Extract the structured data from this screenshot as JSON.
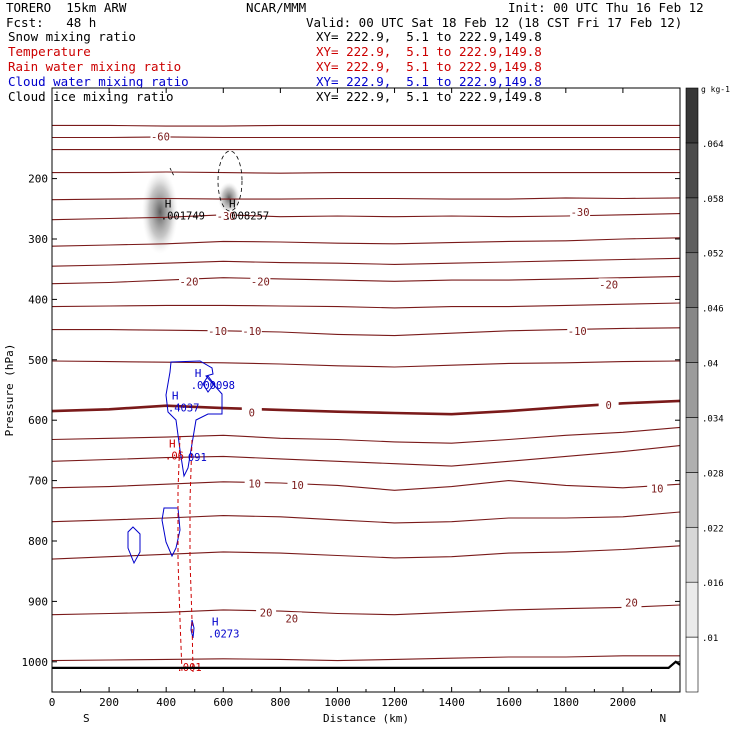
{
  "header": {
    "model": "TORERO  15km ARW",
    "center": "NCAR/MMM",
    "init": "Init: 00 UTC Thu 16 Feb 12",
    "fcst": "Fcst:   48 h",
    "valid": "Valid: 00 UTC Sat 18 Feb 12 (18 CST Fri 17 Feb 12)",
    "fields": [
      {
        "label": "Snow mixing ratio",
        "xy": "XY= 222.9,  5.1 to 222.9,149.8",
        "color": "#000000"
      },
      {
        "label": "Temperature",
        "xy": "XY= 222.9,  5.1 to 222.9,149.8",
        "color": "#cc0000"
      },
      {
        "label": "Rain water mixing ratio",
        "xy": "XY= 222.9,  5.1 to 222.9,149.8",
        "color": "#cc0000"
      },
      {
        "label": "Cloud water mixing ratio",
        "xy": "XY= 222.9,  5.1 to 222.9,149.8",
        "color": "#0000cc"
      },
      {
        "label": "Cloud ice mixing ratio",
        "xy": "XY= 222.9,  5.1 to 222.9,149.8",
        "color": "#000000"
      }
    ]
  },
  "chart_data": {
    "type": "cross-section contour",
    "xlabel": "Distance (km)",
    "ylabel": "Pressure (hPa)",
    "xlim": [
      0,
      2200
    ],
    "ylim": [
      1050,
      50
    ],
    "x_ticks": [
      0,
      200,
      400,
      600,
      800,
      1000,
      1200,
      1400,
      1600,
      1800,
      2000
    ],
    "y_ticks": [
      200,
      300,
      400,
      500,
      600,
      700,
      800,
      900,
      1000
    ],
    "endpoints": {
      "left": "S",
      "right": "N"
    },
    "colorbar": {
      "unit": "g kg-1",
      "ticks": [
        ".01",
        ".016",
        ".022",
        ".028",
        ".034",
        ".04",
        ".046",
        ".052",
        ".058",
        ".064"
      ]
    },
    "temperature_contours": [
      {
        "label": "-60",
        "p": [
          112,
          112,
          113,
          113,
          112,
          112,
          112,
          112,
          112,
          112,
          112,
          112
        ]
      },
      {
        "label": "-60",
        "p": [
          132,
          132,
          131,
          132,
          132,
          132,
          132,
          132,
          132,
          132,
          132,
          132
        ]
      },
      {
        "label": "-60",
        "p": [
          152,
          152,
          152,
          152,
          152,
          152,
          152,
          152,
          152,
          152,
          152,
          152
        ]
      },
      {
        "label": "",
        "p": [
          190,
          190,
          189,
          190,
          191,
          190,
          190,
          190,
          190,
          190,
          190,
          190
        ]
      },
      {
        "label": "",
        "p": [
          235,
          234,
          233,
          234,
          234,
          233,
          233,
          234,
          234,
          232,
          233,
          232
        ]
      },
      {
        "label": "-30",
        "p": [
          268,
          266,
          264,
          260,
          263,
          262,
          263,
          262,
          263,
          262,
          260,
          258
        ]
      },
      {
        "label": "-30",
        "p": [
          312,
          310,
          308,
          304,
          305,
          307,
          308,
          306,
          304,
          303,
          300,
          298
        ]
      },
      {
        "label": "",
        "p": [
          345,
          343,
          340,
          337,
          339,
          340,
          342,
          340,
          338,
          336,
          334,
          332
        ]
      },
      {
        "label": "-20",
        "p": [
          374,
          372,
          368,
          364,
          366,
          368,
          370,
          368,
          368,
          366,
          364,
          362
        ]
      },
      {
        "label": "",
        "p": [
          412,
          411,
          410,
          410,
          411,
          412,
          414,
          412,
          412,
          410,
          408,
          406
        ]
      },
      {
        "label": "-10",
        "p": [
          450,
          450,
          451,
          452,
          454,
          458,
          460,
          456,
          452,
          450,
          448,
          447
        ]
      },
      {
        "label": "",
        "p": [
          502,
          503,
          504,
          505,
          507,
          510,
          512,
          509,
          506,
          505,
          503,
          502
        ]
      },
      {
        "label": "0",
        "p": [
          585,
          582,
          576,
          580,
          583,
          586,
          588,
          590,
          585,
          578,
          572,
          568
        ]
      },
      {
        "label": "",
        "p": [
          632,
          630,
          628,
          625,
          630,
          632,
          636,
          638,
          632,
          625,
          620,
          612
        ]
      },
      {
        "label": "",
        "p": [
          668,
          665,
          662,
          660,
          664,
          668,
          672,
          676,
          668,
          660,
          652,
          642
        ]
      },
      {
        "label": "10",
        "p": [
          712,
          710,
          706,
          702,
          704,
          708,
          716,
          710,
          700,
          708,
          712,
          706
        ]
      },
      {
        "label": "",
        "p": [
          768,
          765,
          762,
          758,
          760,
          765,
          770,
          768,
          762,
          762,
          760,
          752
        ]
      },
      {
        "label": "",
        "p": [
          830,
          826,
          822,
          818,
          820,
          824,
          828,
          826,
          820,
          818,
          814,
          808
        ]
      },
      {
        "label": "20",
        "p": [
          922,
          920,
          918,
          914,
          916,
          920,
          922,
          918,
          914,
          912,
          910,
          906
        ]
      },
      {
        "label": "",
        "p": [
          998,
          997,
          996,
          995,
          996,
          998,
          996,
          994,
          992,
          992,
          990,
          990
        ]
      }
    ],
    "temperature_labels": [
      {
        "text": "-60",
        "x": 380,
        "p": 130
      },
      {
        "text": "-30",
        "x": 610,
        "p": 262
      },
      {
        "text": "-30",
        "x": 1850,
        "p": 255
      },
      {
        "text": "-20",
        "x": 480,
        "p": 370
      },
      {
        "text": "-20",
        "x": 730,
        "p": 370
      },
      {
        "text": "-20",
        "x": 1950,
        "p": 375
      },
      {
        "text": "-10",
        "x": 580,
        "p": 452
      },
      {
        "text": "-10",
        "x": 700,
        "p": 452
      },
      {
        "text": "-10",
        "x": 1840,
        "p": 452
      },
      {
        "text": "0",
        "x": 700,
        "p": 587
      },
      {
        "text": "0",
        "x": 1950,
        "p": 575
      },
      {
        "text": "10",
        "x": 710,
        "p": 705
      },
      {
        "text": "10",
        "x": 860,
        "p": 707
      },
      {
        "text": "10",
        "x": 2120,
        "p": 713
      },
      {
        "text": "20",
        "x": 750,
        "p": 918
      },
      {
        "text": "20",
        "x": 840,
        "p": 928
      },
      {
        "text": "20",
        "x": 2030,
        "p": 902
      }
    ],
    "extrema": [
      {
        "label": "H",
        "value": ".001749",
        "x": 395,
        "p": 258,
        "color": "#000000"
      },
      {
        "label": "H",
        "value": ".008257",
        "x": 620,
        "p": 258,
        "color": "#000000"
      },
      {
        "label": "H",
        "value": ".000098",
        "x": 500,
        "p": 538,
        "color": "#0000cc"
      },
      {
        "label": "H",
        "value": ".4037",
        "x": 420,
        "p": 576,
        "color": "#0000cc"
      },
      {
        "label": "H",
        "value": ".06",
        "x": 410,
        "p": 655,
        "color": "#cc0000"
      },
      {
        "label": "",
        "value": "091",
        "x": 490,
        "p": 658,
        "color": "#0000cc"
      },
      {
        "label": "H",
        "value": ".0273",
        "x": 560,
        "p": 950,
        "color": "#0000cc"
      },
      {
        "label": "",
        "value": ".001",
        "x": 450,
        "p": 1005,
        "color": "#cc0000"
      }
    ]
  }
}
